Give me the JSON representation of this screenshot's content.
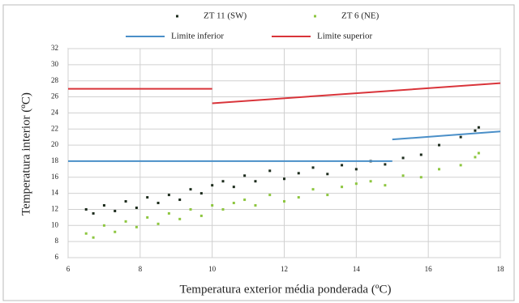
{
  "chart_data": {
    "type": "scatter",
    "x_label": "Temperatura exterior média ponderada (ºC)",
    "y_label": "Temperatura interior (ºC)",
    "xlim": [
      6,
      18
    ],
    "xticks": [
      6,
      8,
      10,
      12,
      14,
      16,
      18
    ],
    "ylim": [
      6,
      32
    ],
    "yticks": [
      6,
      8,
      10,
      12,
      14,
      16,
      18,
      20,
      22,
      24,
      26,
      28,
      30,
      32
    ],
    "grid": true,
    "series": [
      {
        "name": "ZT 11 (SW)",
        "type": "scatter",
        "color": "#1c2b1c",
        "x": [
          6.5,
          6.7,
          7.0,
          7.3,
          7.6,
          7.9,
          8.2,
          8.5,
          8.8,
          9.1,
          9.4,
          9.7,
          10.0,
          10.3,
          10.6,
          10.9,
          11.2,
          11.6,
          12.0,
          12.4,
          12.8,
          13.2,
          13.6,
          14.0,
          14.4,
          14.8,
          15.3,
          15.8,
          16.3,
          16.9,
          17.3,
          17.4
        ],
        "values": [
          12.0,
          11.5,
          12.5,
          11.8,
          13.0,
          12.2,
          13.5,
          12.8,
          13.8,
          13.2,
          14.5,
          14.0,
          15.0,
          15.5,
          14.8,
          16.2,
          15.5,
          16.8,
          15.8,
          16.5,
          17.2,
          16.4,
          17.5,
          17.0,
          18.0,
          17.6,
          18.4,
          18.8,
          20.0,
          21.0,
          21.8,
          22.2
        ]
      },
      {
        "name": "ZT 6 (NE)",
        "type": "scatter",
        "color": "#8dc63f",
        "x": [
          6.5,
          6.7,
          7.0,
          7.3,
          7.6,
          7.9,
          8.2,
          8.5,
          8.8,
          9.1,
          9.4,
          9.7,
          10.0,
          10.3,
          10.6,
          10.9,
          11.2,
          11.6,
          12.0,
          12.4,
          12.8,
          13.2,
          13.6,
          14.0,
          14.4,
          14.8,
          15.3,
          15.8,
          16.3,
          16.9,
          17.3,
          17.4
        ],
        "values": [
          9.0,
          8.5,
          10.0,
          9.2,
          10.5,
          9.8,
          11.0,
          10.2,
          11.5,
          10.8,
          12.0,
          11.2,
          12.5,
          12.0,
          12.8,
          13.2,
          12.5,
          13.8,
          13.0,
          13.5,
          14.5,
          13.8,
          14.8,
          15.2,
          15.5,
          15.0,
          16.2,
          16.0,
          17.0,
          17.5,
          18.5,
          19.0
        ]
      },
      {
        "name": "Limite inferior",
        "type": "line",
        "color": "#4a8fc8",
        "x": [
          6,
          15,
          15,
          15,
          18
        ],
        "values": [
          18,
          18,
          null,
          20.7,
          21.7
        ]
      },
      {
        "name": "Limite superior",
        "type": "line",
        "color": "#d9343a",
        "x": [
          6,
          10,
          10,
          10,
          18
        ],
        "values": [
          27,
          27,
          null,
          25.2,
          27.7
        ]
      }
    ]
  }
}
